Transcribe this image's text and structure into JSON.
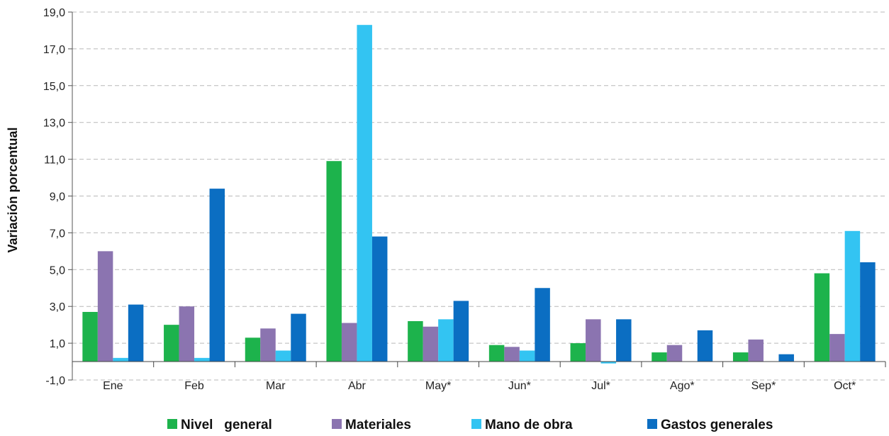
{
  "chart_data": {
    "type": "bar",
    "title": "",
    "xlabel": "",
    "ylabel": "Variación porcentual",
    "ylim": [
      -1,
      19
    ],
    "yticks": [
      "-1,0",
      "1,0",
      "3,0",
      "5,0",
      "7,0",
      "9,0",
      "11,0",
      "13,0",
      "15,0",
      "17,0",
      "19,0"
    ],
    "ytick_values": [
      -1,
      1,
      3,
      5,
      7,
      9,
      11,
      13,
      15,
      17,
      19
    ],
    "grid": "horizontal-dashed",
    "legend_position": "bottom",
    "categories": [
      "Ene",
      "Feb",
      "Mar",
      "Abr",
      "May*",
      "Jun*",
      "Jul*",
      "Ago*",
      "Sep*",
      "Oct*"
    ],
    "series": [
      {
        "name": "Nivel   general",
        "color": "#1db34c",
        "values": [
          2.7,
          2.0,
          1.3,
          10.9,
          2.2,
          0.9,
          1.0,
          0.5,
          0.5,
          4.8
        ]
      },
      {
        "name": "Materiales",
        "color": "#8b74b0",
        "values": [
          6.0,
          3.0,
          1.8,
          2.1,
          1.9,
          0.8,
          2.3,
          0.9,
          1.2,
          1.5
        ]
      },
      {
        "name": "Mano de obra",
        "color": "#33c4f2",
        "values": [
          0.2,
          0.2,
          0.6,
          18.3,
          2.3,
          0.6,
          -0.1,
          0.0,
          0.0,
          7.1
        ]
      },
      {
        "name": "Gastos generales",
        "color": "#0b6ec2",
        "values": [
          3.1,
          9.4,
          2.6,
          6.8,
          3.3,
          4.0,
          2.3,
          1.7,
          0.4,
          5.4
        ]
      }
    ]
  }
}
